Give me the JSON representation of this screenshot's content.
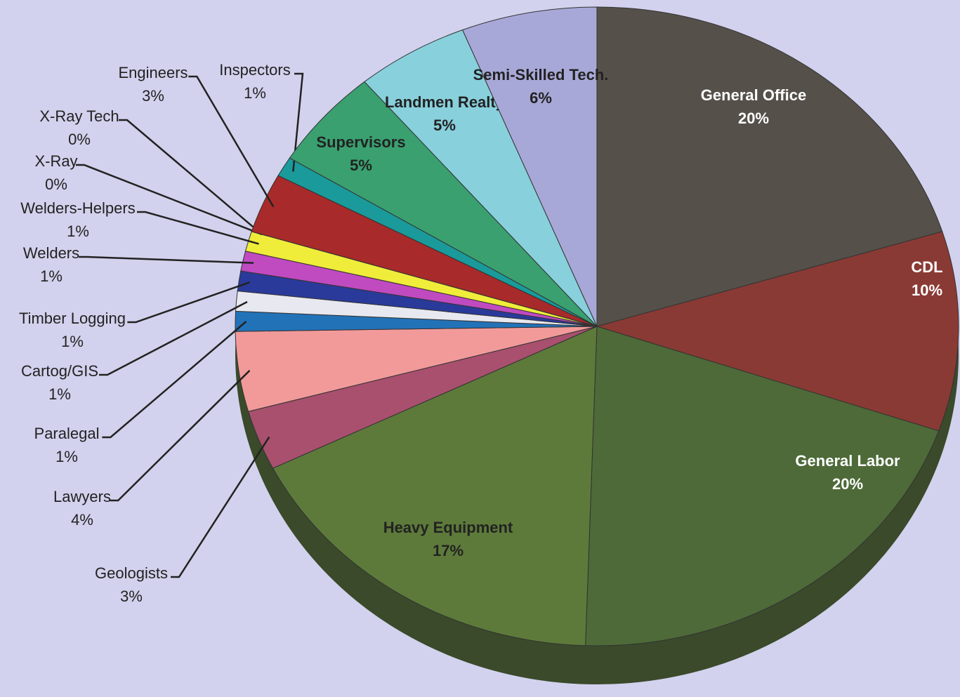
{
  "chart_data": {
    "type": "pie",
    "categories": [
      "General Office",
      "CDL",
      "General Labor",
      "Heavy Equipment",
      "Geologists",
      "Lawyers",
      "Paralegal",
      "Cartog/GIS",
      "Timber Logging",
      "Welders",
      "Welders-Helpers",
      "X-Ray",
      "X-Ray Tech",
      "Engineers",
      "Inspectors",
      "Supervisors",
      "Landmen Realty",
      "Semi-Skilled Tech."
    ],
    "values": [
      20,
      10,
      20,
      17,
      3,
      4,
      1,
      1,
      1,
      1,
      1,
      0,
      0,
      3,
      1,
      5,
      5,
      6
    ],
    "value_labels": [
      "20%",
      "10%",
      "20%",
      "17%",
      "3%",
      "4%",
      "1%",
      "1%",
      "1%",
      "1%",
      "1%",
      "0%",
      "0%",
      "3%",
      "1%",
      "5%",
      "5%",
      "6%"
    ],
    "colors": [
      "#55504a",
      "#8a3a34",
      "#4d6a38",
      "#5d7a3a",
      "#a8506e",
      "#f29a9a",
      "#2272b8",
      "#e8e8f0",
      "#2a3a9a",
      "#c04ac0",
      "#f0ec3a",
      "#5ad0e0",
      "#9090a0",
      "#a82a2a",
      "#1a9a9a",
      "#3aa070",
      "#88d0dc",
      "#a8a8d8"
    ]
  }
}
